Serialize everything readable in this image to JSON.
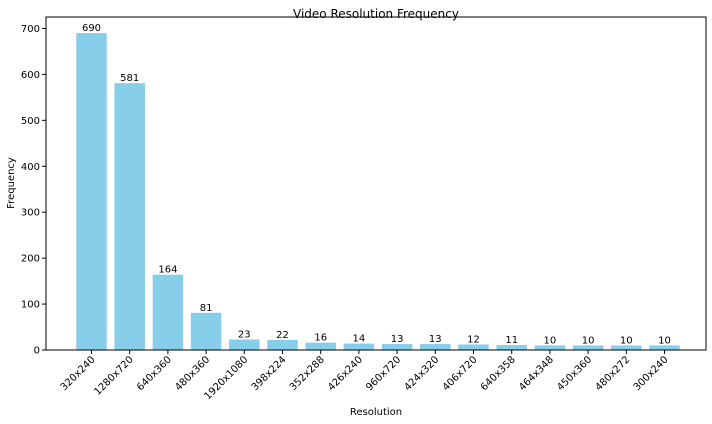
{
  "chart_data": {
    "type": "bar",
    "title": "Video Resolution Frequency",
    "xlabel": "Resolution",
    "ylabel": "Frequency",
    "categories": [
      "320x240",
      "1280x720",
      "640x360",
      "480x360",
      "1920x1080",
      "398x224",
      "352x288",
      "426x240",
      "960x720",
      "424x320",
      "406x720",
      "640x358",
      "464x348",
      "450x360",
      "480x272",
      "300x240"
    ],
    "values": [
      690,
      581,
      164,
      81,
      23,
      22,
      16,
      14,
      13,
      13,
      12,
      11,
      10,
      10,
      10,
      10
    ],
    "ylim": [
      0,
      725
    ],
    "yticks": [
      0,
      100,
      200,
      300,
      400,
      500,
      600,
      700
    ],
    "grid": false,
    "bar_color": "#87CEEB"
  }
}
